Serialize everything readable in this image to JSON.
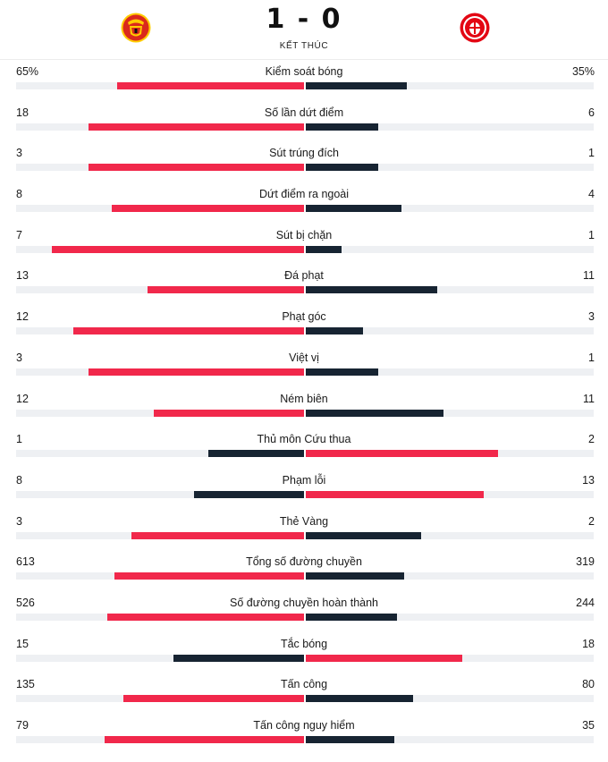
{
  "match": {
    "score": "1 - 0",
    "status": "KẾT THÚC",
    "home_logo": "manchester-united-crest",
    "away_logo": "brentford-crest"
  },
  "colors": {
    "leader": "#f1284b",
    "trailer": "#172432",
    "track": "#eef0f3"
  },
  "stats": [
    {
      "name": "Kiểm soát bóng",
      "home": "65%",
      "away": "35%",
      "home_frac": 0.65,
      "away_frac": 0.35,
      "home_leads": true
    },
    {
      "name": "Số lần dứt điểm",
      "home": "18",
      "away": "6",
      "home_frac": 0.75,
      "away_frac": 0.25,
      "home_leads": true
    },
    {
      "name": "Sút trúng đích",
      "home": "3",
      "away": "1",
      "home_frac": 0.75,
      "away_frac": 0.25,
      "home_leads": true
    },
    {
      "name": "Dứt điểm ra ngoài",
      "home": "8",
      "away": "4",
      "home_frac": 0.667,
      "away_frac": 0.333,
      "home_leads": true
    },
    {
      "name": "Sút bị chặn",
      "home": "7",
      "away": "1",
      "home_frac": 0.875,
      "away_frac": 0.125,
      "home_leads": true
    },
    {
      "name": "Đá phạt",
      "home": "13",
      "away": "11",
      "home_frac": 0.542,
      "away_frac": 0.458,
      "home_leads": true
    },
    {
      "name": "Phạt góc",
      "home": "12",
      "away": "3",
      "home_frac": 0.8,
      "away_frac": 0.2,
      "home_leads": true
    },
    {
      "name": "Việt vị",
      "home": "3",
      "away": "1",
      "home_frac": 0.75,
      "away_frac": 0.25,
      "home_leads": true
    },
    {
      "name": "Ném biên",
      "home": "12",
      "away": "11",
      "home_frac": 0.522,
      "away_frac": 0.478,
      "home_leads": true
    },
    {
      "name": "Thủ môn Cứu thua",
      "home": "1",
      "away": "2",
      "home_frac": 0.333,
      "away_frac": 0.667,
      "home_leads": false
    },
    {
      "name": "Phạm lỗi",
      "home": "8",
      "away": "13",
      "home_frac": 0.381,
      "away_frac": 0.619,
      "home_leads": false
    },
    {
      "name": "Thẻ Vàng",
      "home": "3",
      "away": "2",
      "home_frac": 0.6,
      "away_frac": 0.4,
      "home_leads": true
    },
    {
      "name": "Tổng số đường chuyền",
      "home": "613",
      "away": "319",
      "home_frac": 0.658,
      "away_frac": 0.342,
      "home_leads": true
    },
    {
      "name": "Số đường chuyền hoàn thành",
      "home": "526",
      "away": "244",
      "home_frac": 0.683,
      "away_frac": 0.317,
      "home_leads": true
    },
    {
      "name": "Tắc bóng",
      "home": "15",
      "away": "18",
      "home_frac": 0.455,
      "away_frac": 0.545,
      "home_leads": false
    },
    {
      "name": "Tấn công",
      "home": "135",
      "away": "80",
      "home_frac": 0.628,
      "away_frac": 0.372,
      "home_leads": true
    },
    {
      "name": "Tấn công nguy hiểm",
      "home": "79",
      "away": "35",
      "home_frac": 0.693,
      "away_frac": 0.307,
      "home_leads": true
    }
  ]
}
